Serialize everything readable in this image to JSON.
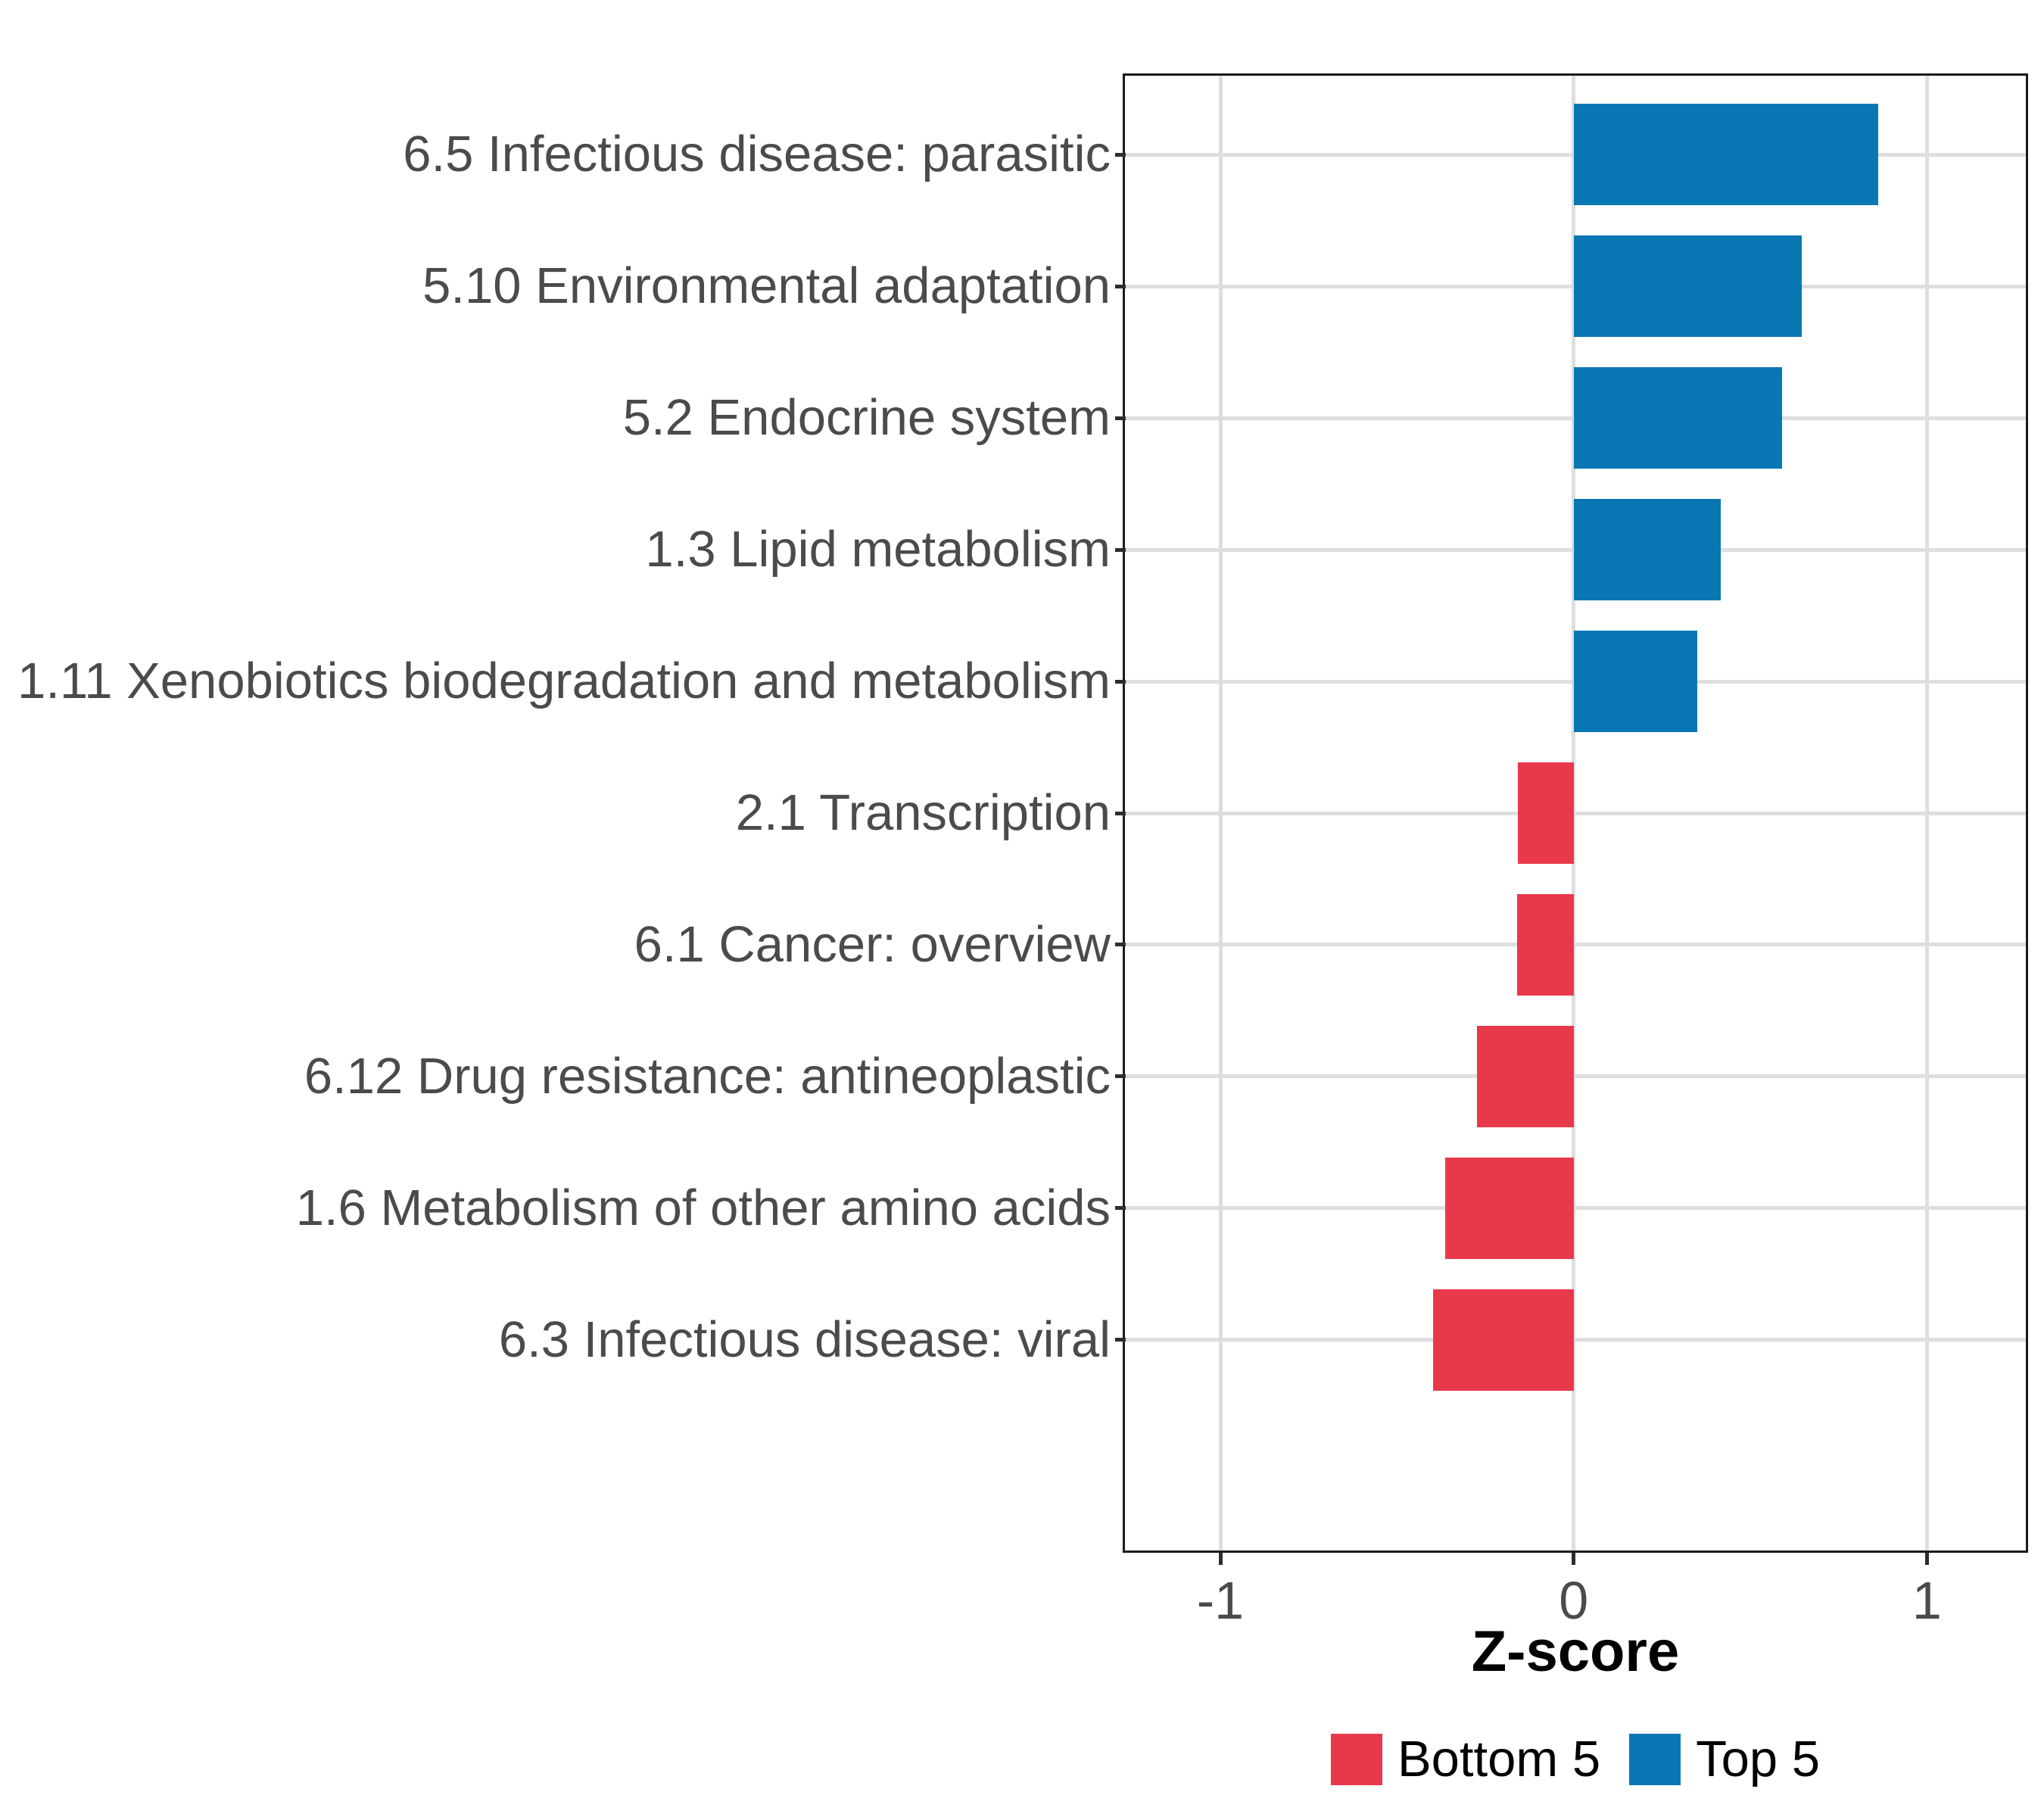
{
  "chart_data": {
    "type": "bar",
    "orientation": "horizontal",
    "title": "",
    "xlabel": "Z-score",
    "ylabel": "",
    "xlim": [
      -1.27,
      1.28
    ],
    "grid": true,
    "legend_position": "bottom",
    "x_ticks": [
      {
        "value": -1,
        "label": "-1"
      },
      {
        "value": 0,
        "label": "0"
      },
      {
        "value": 1,
        "label": "1"
      }
    ],
    "bars": [
      {
        "category": "6.5 Infectious disease: parasitic",
        "value": 0.863,
        "group": "Top 5"
      },
      {
        "category": "5.10 Environmental adaptation",
        "value": 0.645,
        "group": "Top 5"
      },
      {
        "category": "5.2 Endocrine system",
        "value": 0.591,
        "group": "Top 5"
      },
      {
        "category": "1.3 Lipid metabolism",
        "value": 0.416,
        "group": "Top 5"
      },
      {
        "category": "1.11 Xenobiotics biodegradation and metabolism",
        "value": 0.351,
        "group": "Top 5"
      },
      {
        "category": "2.1 Transcription",
        "value": -0.157,
        "group": "Bottom 5"
      },
      {
        "category": "6.1 Cancer: overview",
        "value": -0.159,
        "group": "Bottom 5"
      },
      {
        "category": "6.12 Drug resistance: antineoplastic",
        "value": -0.274,
        "group": "Bottom 5"
      },
      {
        "category": "1.6 Metabolism of other amino acids",
        "value": -0.364,
        "group": "Bottom 5"
      },
      {
        "category": "6.3 Infectious disease: viral",
        "value": -0.398,
        "group": "Bottom 5"
      }
    ],
    "legend": [
      {
        "label": "Bottom 5",
        "color": "#E8394A"
      },
      {
        "label": "Top 5",
        "color": "#0877B4"
      }
    ],
    "colors": {
      "top5": "#0877B4",
      "bottom5": "#E8394A",
      "grid": "#DEDEDE",
      "axis_text": "#4B4B4B",
      "panel_border": "#1B1B1B",
      "tick": "#2D2D2D"
    }
  }
}
